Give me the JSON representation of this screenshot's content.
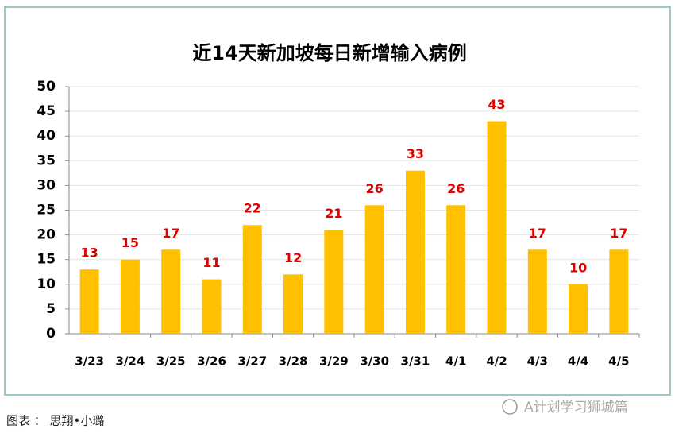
{
  "chart_data": {
    "type": "bar",
    "title": "近14天新加坡每日新增输入病例",
    "categories": [
      "3/23",
      "3/24",
      "3/25",
      "3/26",
      "3/27",
      "3/28",
      "3/29",
      "3/30",
      "3/31",
      "4/1",
      "4/2",
      "4/3",
      "4/4",
      "4/5"
    ],
    "values": [
      13,
      15,
      17,
      11,
      22,
      12,
      21,
      26,
      33,
      26,
      43,
      17,
      10,
      17
    ],
    "color": "#ffc000",
    "label_color": "#e00000",
    "ylim": [
      0,
      50
    ],
    "yticks": [
      0,
      5,
      10,
      15,
      20,
      25,
      30,
      35,
      40,
      45,
      50
    ],
    "grid": true
  },
  "caption": "图表 ： 思翔•小璐",
  "watermark": "A计划学习狮城篇"
}
